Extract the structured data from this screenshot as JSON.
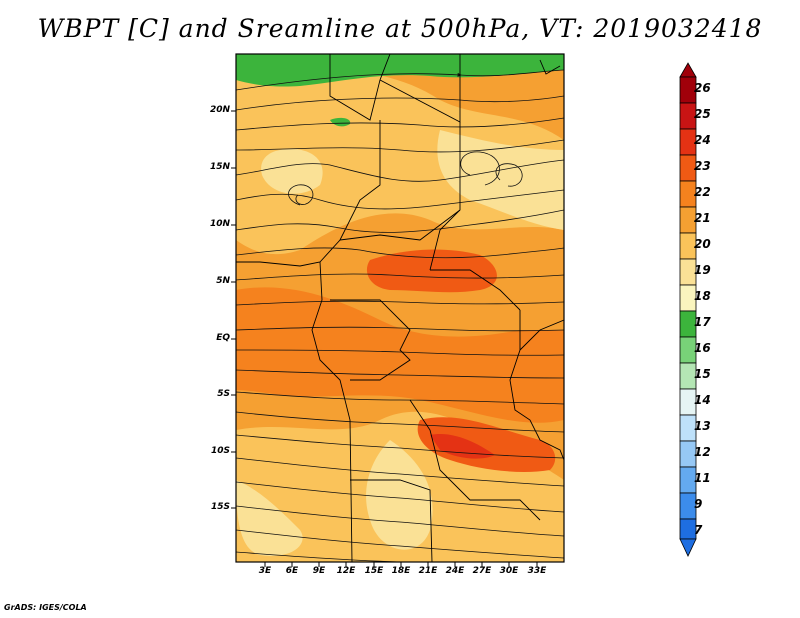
{
  "title": "WBPT [C] and Sreamline at 500hPa, VT: 2019032418",
  "credit": "GrADS: IGES/COLA",
  "map": {
    "region": "Central Africa (0°E–36°E, 21°S–25°N)",
    "variable": "Wet-bulb potential temperature at 500 hPa",
    "units": "C",
    "overlay": "streamlines",
    "valid_time": "2019032418",
    "lat_labels": [
      "20N",
      "15N",
      "10N",
      "5N",
      "EQ",
      "5S",
      "10S",
      "15S"
    ],
    "lon_labels": [
      "3E",
      "6E",
      "9E",
      "12E",
      "15E",
      "18E",
      "21E",
      "24E",
      "27E",
      "30E",
      "33E"
    ]
  },
  "colorbar": {
    "levels": [
      "26",
      "25",
      "24",
      "23",
      "22",
      "21",
      "20",
      "19",
      "18",
      "17",
      "16",
      "15",
      "14",
      "13",
      "12",
      "11",
      "9",
      "7"
    ],
    "colors": [
      "#a0000a",
      "#c81414",
      "#e43214",
      "#f05a14",
      "#f5821e",
      "#f5a032",
      "#fac35a",
      "#fae196",
      "#faf5be",
      "#3cb43c",
      "#78d278",
      "#b4e6b4",
      "#e6f5f5",
      "#bee1fa",
      "#96c8f5",
      "#64aaf0",
      "#3c8ceb",
      "#1e6ee1"
    ]
  }
}
